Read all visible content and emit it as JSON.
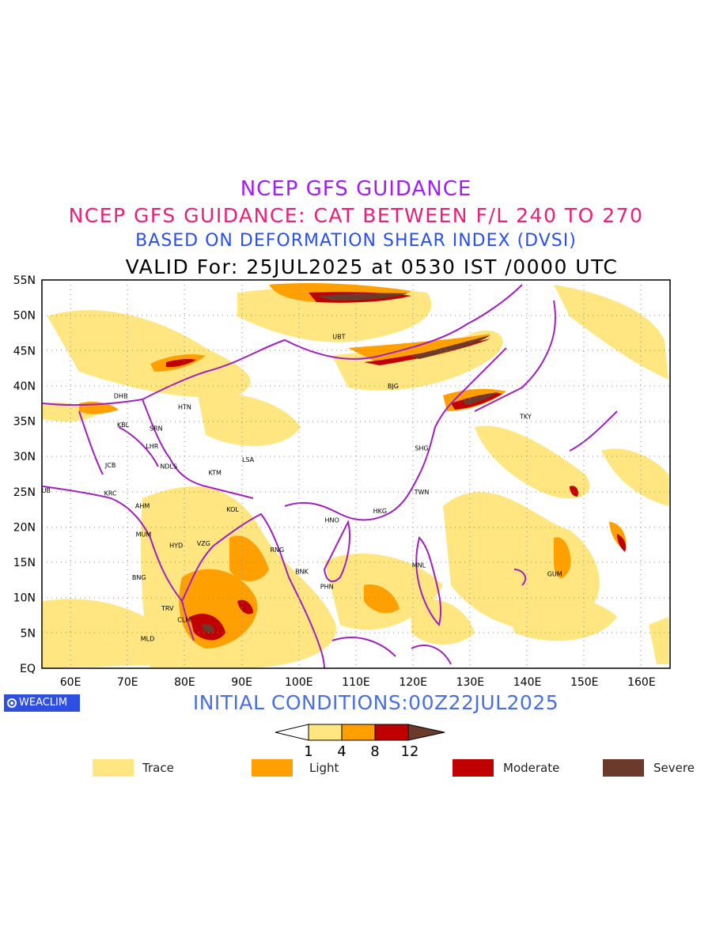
{
  "titles": {
    "line1": "NCEP GFS GUIDANCE",
    "line2": "NCEP GFS GUIDANCE: CAT BETWEEN F/L 240 TO 270",
    "line3": "BASED ON DEFORMATION SHEAR INDEX (DVSI)",
    "line4": "VALID For: 25JUL2025 at 0530 IST /0000 UTC"
  },
  "initial_conditions": "INITIAL CONDITIONS:00Z22JUL2025",
  "logo_text": "WEACLIM",
  "axes": {
    "lon_labels": [
      "60E",
      "70E",
      "80E",
      "90E",
      "100E",
      "110E",
      "120E",
      "130E",
      "140E",
      "150E",
      "160E"
    ],
    "lat_labels": [
      "55N",
      "50N",
      "45N",
      "40N",
      "35N",
      "30N",
      "25N",
      "20N",
      "15N",
      "10N",
      "5N",
      "EQ"
    ]
  },
  "colorbar": {
    "ticks": [
      "1",
      "4",
      "8",
      "12"
    ],
    "colors": [
      "#ffe680",
      "#ffa000",
      "#c00000",
      "#6b3a2a"
    ]
  },
  "legend": [
    {
      "label": "Trace",
      "color": "#ffe680"
    },
    {
      "label": "Light",
      "color": "#ffa000"
    },
    {
      "label": "Moderate",
      "color": "#c00000"
    },
    {
      "label": "Severe",
      "color": "#6b3a2a"
    }
  ],
  "stations": [
    {
      "code": "UBT",
      "lon": 107,
      "lat": 47
    },
    {
      "code": "BJG",
      "lon": 116.5,
      "lat": 40
    },
    {
      "code": "DHB",
      "lon": 68.8,
      "lat": 38.6
    },
    {
      "code": "HTN",
      "lon": 80,
      "lat": 37
    },
    {
      "code": "KBL",
      "lon": 69.2,
      "lat": 34.5
    },
    {
      "code": "SRN",
      "lon": 75,
      "lat": 34
    },
    {
      "code": "LHR",
      "lon": 74.3,
      "lat": 31.5
    },
    {
      "code": "NDLS",
      "lon": 77.2,
      "lat": 28.6
    },
    {
      "code": "KTM",
      "lon": 85.3,
      "lat": 27.7
    },
    {
      "code": "LSA",
      "lon": 91.1,
      "lat": 29.6
    },
    {
      "code": "JCB",
      "lon": 67,
      "lat": 28.8
    },
    {
      "code": "KRC",
      "lon": 67,
      "lat": 24.8
    },
    {
      "code": "AHM",
      "lon": 72.6,
      "lat": 23
    },
    {
      "code": "KOL",
      "lon": 88.4,
      "lat": 22.5
    },
    {
      "code": "MUM",
      "lon": 72.8,
      "lat": 19
    },
    {
      "code": "HYD",
      "lon": 78.5,
      "lat": 17.4
    },
    {
      "code": "VZG",
      "lon": 83.3,
      "lat": 17.7
    },
    {
      "code": "BNG",
      "lon": 72,
      "lat": 12.9
    },
    {
      "code": "TRV",
      "lon": 77,
      "lat": 8.5
    },
    {
      "code": "CLM",
      "lon": 79.9,
      "lat": 6.9
    },
    {
      "code": "MLD",
      "lon": 73.5,
      "lat": 4.2
    },
    {
      "code": "RNG",
      "lon": 96.2,
      "lat": 16.8
    },
    {
      "code": "BNK",
      "lon": 100.5,
      "lat": 13.7
    },
    {
      "code": "PHN",
      "lon": 104.9,
      "lat": 11.6
    },
    {
      "code": "HNO",
      "lon": 105.8,
      "lat": 21
    },
    {
      "code": "HKG",
      "lon": 114.2,
      "lat": 22.3
    },
    {
      "code": "SHG",
      "lon": 121.5,
      "lat": 31.2
    },
    {
      "code": "TWN",
      "lon": 121.5,
      "lat": 25
    },
    {
      "code": "MNL",
      "lon": 121,
      "lat": 14.6
    },
    {
      "code": "TKY",
      "lon": 139.7,
      "lat": 35.7
    },
    {
      "code": "GUM",
      "lon": 144.8,
      "lat": 13.4
    },
    {
      "code": "DUB",
      "lon": 55.3,
      "lat": 25.2
    }
  ]
}
